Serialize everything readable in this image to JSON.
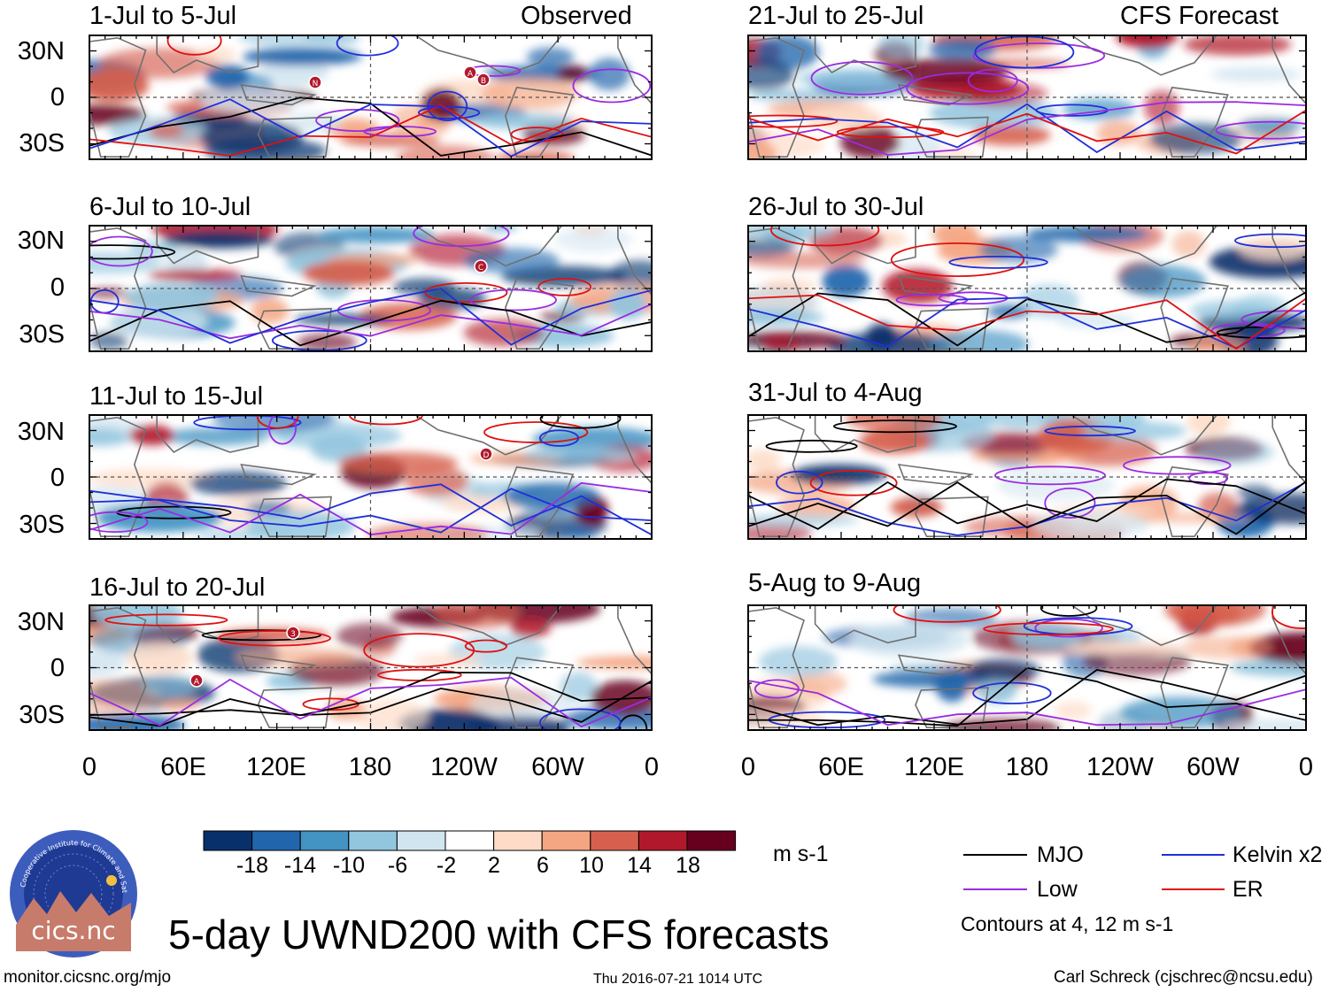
{
  "figure": {
    "title": "5-day UWND200 with CFS forecasts",
    "website": "monitor.cicsnc.org/mjo",
    "timestamp": "Thu 2016-07-21 1014 UTC",
    "author": "Carl Schreck (cjschrec@ncsu.edu)",
    "logo": {
      "text": "cics.nc",
      "ring_text": "Cooperative Institute for Climate and Satellites",
      "colors": {
        "outer": "#3d5dbd",
        "inner": "#1f3a93",
        "mountain": "#c77b6b",
        "sun": "#f0c040"
      }
    },
    "observed_label": "Observed",
    "forecast_label": "CFS Forecast"
  },
  "axes": {
    "y_ticks": [
      "30N",
      "0",
      "30S"
    ],
    "x_ticks": [
      "0",
      "60E",
      "120E",
      "180",
      "120W",
      "60W",
      "0"
    ]
  },
  "panels": {
    "left": [
      {
        "title": "1-Jul to 5-Jul"
      },
      {
        "title": "6-Jul to 10-Jul"
      },
      {
        "title": "11-Jul to 15-Jul"
      },
      {
        "title": "16-Jul to 20-Jul"
      }
    ],
    "right": [
      {
        "title": "21-Jul to 25-Jul"
      },
      {
        "title": "26-Jul to 30-Jul"
      },
      {
        "title": "31-Jul to 4-Aug"
      },
      {
        "title": "5-Aug to 9-Aug"
      }
    ]
  },
  "tc_labels": [
    "N",
    "A",
    "B",
    "C",
    "D",
    "3",
    "A"
  ],
  "colorbar": {
    "unit": "m s-1",
    "labels": [
      "-18",
      "-14",
      "-10",
      "-6",
      "-2",
      "2",
      "6",
      "10",
      "14",
      "18"
    ],
    "colors": [
      "#08306b",
      "#2166ac",
      "#4393c3",
      "#92c5de",
      "#d1e5f0",
      "#ffffff",
      "#fddbc7",
      "#f4a582",
      "#d6604d",
      "#b2182b",
      "#67001f"
    ]
  },
  "legend": {
    "items": [
      {
        "label": "MJO",
        "color": "#000000"
      },
      {
        "label": "Kelvin x2",
        "color": "#1f2fd8"
      },
      {
        "label": "Low",
        "color": "#9a2be2"
      },
      {
        "label": "ER",
        "color": "#e01010"
      }
    ],
    "note": "Contours at 4, 12 m s-1"
  }
}
